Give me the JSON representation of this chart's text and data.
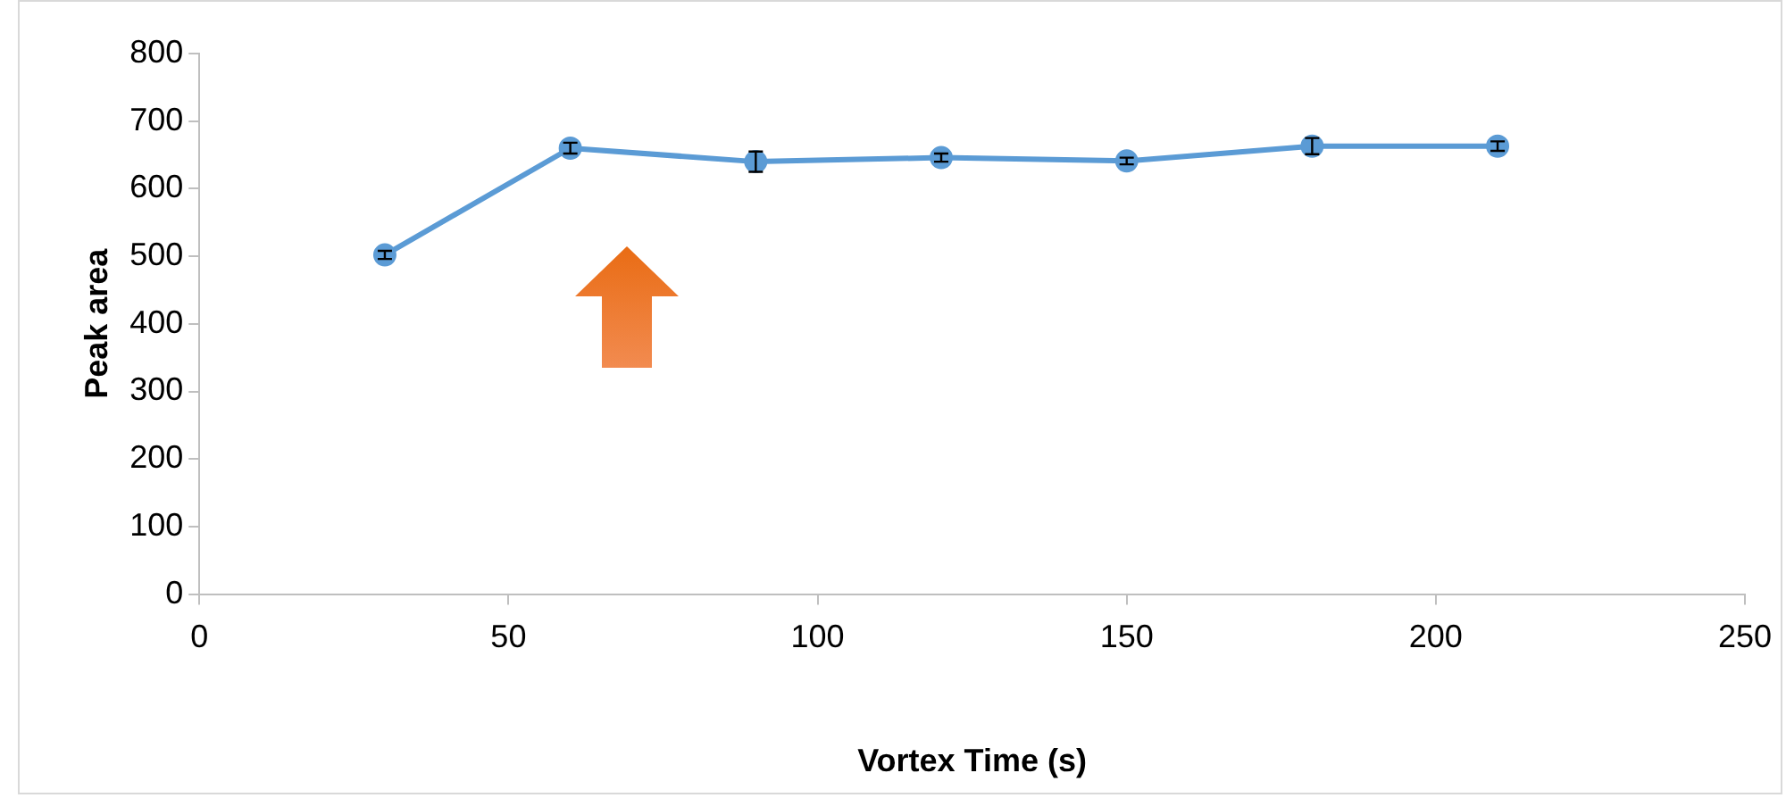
{
  "chart_data": {
    "type": "line",
    "xlabel": "Vortex Time (s)",
    "ylabel": "Peak area",
    "x": [
      30,
      60,
      90,
      120,
      150,
      180,
      210
    ],
    "series": [
      {
        "color": "#5b9bd5",
        "values": [
          502,
          660,
          640,
          646,
          641,
          663,
          663
        ],
        "errors": [
          6,
          8,
          15,
          6,
          5,
          12,
          7
        ]
      }
    ],
    "xlim": [
      0,
      250
    ],
    "xticks": [
      0,
      50,
      100,
      150,
      200,
      250
    ],
    "ylim": [
      0,
      800
    ],
    "yticks": [
      0,
      100,
      200,
      300,
      400,
      500,
      600,
      700,
      800
    ],
    "grid": false,
    "legend": false,
    "marker": "circle",
    "line_style": "solid"
  }
}
